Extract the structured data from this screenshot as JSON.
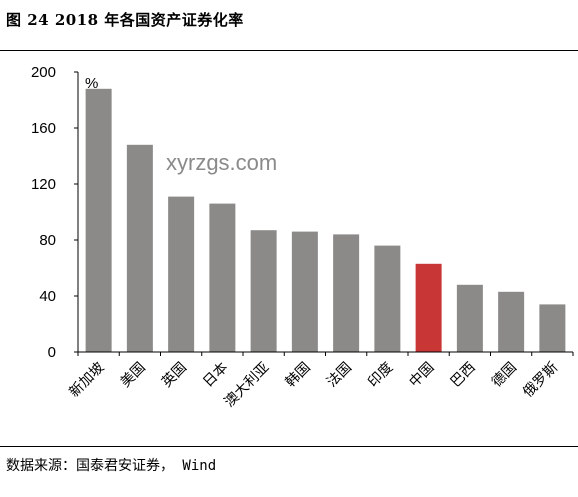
{
  "caption": {
    "title": "图 24 2018 年各国资产证券化率",
    "source": "数据来源：国泰君安证券， Wind"
  },
  "watermark": "xyrzgs.com",
  "colors": {
    "bar": "#8c8a89",
    "highlight": "#c93636",
    "axis": "#000000"
  },
  "chart_data": {
    "type": "bar",
    "title": "",
    "xlabel": "",
    "ylabel": "",
    "unit": "%",
    "categories": [
      "新加坡",
      "美国",
      "英国",
      "日本",
      "澳大利亚",
      "韩国",
      "法国",
      "印度",
      "中国",
      "巴西",
      "德国",
      "俄罗斯"
    ],
    "values": [
      188,
      148,
      111,
      106,
      87,
      86,
      84,
      76,
      63,
      48,
      43,
      34
    ],
    "highlight": "中国",
    "ylim": [
      0,
      200
    ],
    "yticks": [
      0,
      40,
      80,
      120,
      160,
      200
    ],
    "grid": false,
    "legend": "none"
  }
}
